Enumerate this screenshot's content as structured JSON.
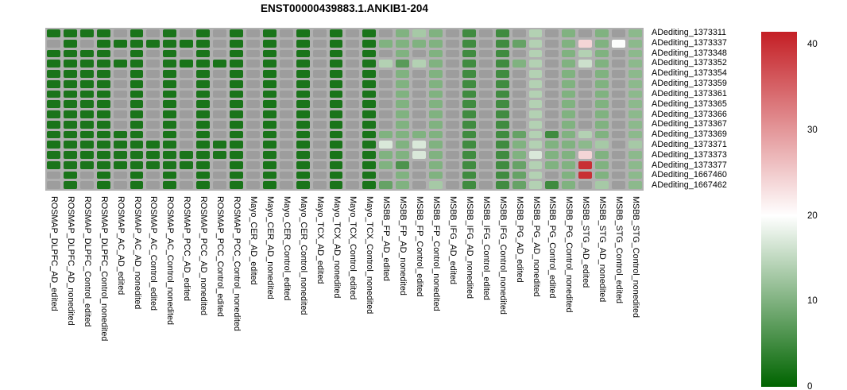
{
  "chart_data": {
    "type": "heatmap",
    "title": "ENST00000439883.1.ANKIB1-204",
    "legend_position": "right",
    "rows": [
      "ADediting_1373311",
      "ADediting_1373337",
      "ADediting_1373348",
      "ADediting_1373352",
      "ADediting_1373354",
      "ADediting_1373359",
      "ADediting_1373361",
      "ADediting_1373365",
      "ADediting_1373366",
      "ADediting_1373367",
      "ADediting_1373369",
      "ADediting_1373371",
      "ADediting_1373373",
      "ADediting_1373377",
      "ADediting_1667460",
      "ADediting_1667462"
    ],
    "columns": [
      "ROSMAP_DLPFC_AD_edited",
      "ROSMAP_DLPFC_AD_nonedited",
      "ROSMAP_DLPFC_Control_edited",
      "ROSMAP_DLPFC_Control_nonedited",
      "ROSMAP_AC_AD_edited",
      "ROSMAP_AC_AD_nonedited",
      "ROSMAP_AC_Control_edited",
      "ROSMAP_AC_Control_nonedited",
      "ROSMAP_PCC_AD_edited",
      "ROSMAP_PCC_AD_nonedited",
      "ROSMAP_PCC_Control_edited",
      "ROSMAP_PCC_Control_nonedited",
      "Mayo_CER_AD_edited",
      "Mayo_CER_AD_nonedited",
      "Mayo_CER_Control_edited",
      "Mayo_CER_Control_nonedited",
      "Mayo_TCX_AD_edited",
      "Mayo_TCX_AD_nonedited",
      "Mayo_TCX_Control_edited",
      "Mayo_TCX_Control_nonedited",
      "MSBB_FP_AD_edited",
      "MSBB_FP_AD_nonedited",
      "MSBB_FP_Control_edited",
      "MSBB_FP_Control_nonedited",
      "MSBB_IFG_AD_edited",
      "MSBB_IFG_AD_nonedited",
      "MSBB_IFG_Control_edited",
      "MSBB_IFG_Control_nonedited",
      "MSBB_PG_AD_edited",
      "MSBB_PG_AD_nonedited",
      "MSBB_PG_Control_edited",
      "MSBB_PG_Control_nonedited",
      "MSBB_STG_AD_edited",
      "MSBB_STG_AD_nonedited",
      "MSBB_STG_Control_edited",
      "MSBB_STG_Control_nonedited"
    ],
    "values": [
      [
        2,
        2,
        2,
        2,
        null,
        2,
        null,
        2,
        null,
        2,
        null,
        2,
        null,
        2,
        null,
        2,
        null,
        2,
        null,
        2,
        null,
        10,
        13,
        10,
        null,
        5,
        null,
        5,
        null,
        14,
        null,
        10,
        null,
        10,
        null,
        11
      ],
      [
        null,
        2,
        null,
        2,
        2,
        2,
        2,
        2,
        2,
        2,
        null,
        2,
        null,
        2,
        null,
        2,
        null,
        2,
        null,
        2,
        10,
        10,
        10,
        10,
        null,
        5,
        null,
        5,
        8,
        14,
        null,
        10,
        24,
        10,
        19.8,
        11
      ],
      [
        2,
        2,
        2,
        2,
        null,
        2,
        null,
        2,
        null,
        2,
        null,
        2,
        null,
        2,
        null,
        2,
        null,
        2,
        null,
        2,
        null,
        10,
        null,
        10,
        null,
        5,
        null,
        5,
        null,
        14,
        null,
        10,
        14,
        10,
        null,
        11
      ],
      [
        2,
        2,
        2,
        2,
        2,
        2,
        null,
        2,
        2,
        2,
        2,
        2,
        null,
        2,
        null,
        2,
        null,
        2,
        null,
        2,
        14,
        7,
        14,
        10,
        null,
        5,
        null,
        5,
        10,
        14,
        null,
        10,
        16,
        10,
        null,
        11
      ],
      [
        2,
        2,
        2,
        2,
        null,
        2,
        null,
        2,
        null,
        2,
        null,
        2,
        null,
        2,
        null,
        2,
        null,
        2,
        null,
        2,
        null,
        10,
        null,
        10,
        null,
        5,
        null,
        5,
        null,
        14,
        null,
        10,
        null,
        10,
        null,
        11
      ],
      [
        2,
        2,
        2,
        2,
        null,
        2,
        null,
        2,
        null,
        2,
        null,
        2,
        null,
        2,
        null,
        2,
        null,
        2,
        null,
        2,
        null,
        10,
        null,
        10,
        null,
        5,
        null,
        5,
        null,
        14,
        null,
        10,
        null,
        10,
        null,
        11
      ],
      [
        2,
        2,
        2,
        2,
        null,
        2,
        null,
        2,
        null,
        2,
        null,
        2,
        null,
        2,
        null,
        2,
        null,
        2,
        null,
        2,
        null,
        10,
        null,
        10,
        null,
        5,
        null,
        5,
        null,
        14,
        null,
        10,
        null,
        10,
        null,
        11
      ],
      [
        2,
        2,
        2,
        2,
        null,
        2,
        null,
        2,
        null,
        2,
        null,
        2,
        null,
        2,
        null,
        2,
        null,
        2,
        null,
        2,
        null,
        10,
        null,
        10,
        null,
        5,
        null,
        5,
        null,
        14,
        null,
        10,
        null,
        10,
        null,
        11
      ],
      [
        2,
        2,
        2,
        2,
        null,
        2,
        null,
        2,
        null,
        2,
        null,
        2,
        null,
        2,
        null,
        2,
        null,
        2,
        null,
        2,
        null,
        10,
        null,
        10,
        null,
        5,
        null,
        5,
        null,
        14,
        null,
        10,
        null,
        10,
        null,
        11
      ],
      [
        2,
        2,
        2,
        2,
        null,
        2,
        null,
        2,
        null,
        2,
        null,
        2,
        null,
        2,
        null,
        2,
        null,
        2,
        null,
        2,
        null,
        10,
        null,
        10,
        null,
        5,
        null,
        5,
        null,
        14,
        null,
        10,
        null,
        10,
        null,
        11
      ],
      [
        2,
        2,
        2,
        2,
        2,
        2,
        null,
        2,
        null,
        2,
        null,
        2,
        null,
        2,
        null,
        2,
        null,
        2,
        null,
        2,
        10,
        10,
        10,
        10,
        null,
        5,
        null,
        5,
        8,
        14,
        5,
        10,
        14,
        10,
        null,
        11
      ],
      [
        2,
        2,
        2,
        2,
        2,
        2,
        2,
        2,
        null,
        2,
        2,
        2,
        null,
        2,
        null,
        2,
        null,
        2,
        null,
        2,
        17,
        10,
        17,
        10,
        null,
        5,
        null,
        5,
        10,
        14,
        10,
        10,
        11,
        13,
        null,
        13
      ],
      [
        2,
        2,
        2,
        2,
        2,
        2,
        2,
        2,
        2,
        2,
        2,
        2,
        null,
        2,
        null,
        2,
        null,
        2,
        null,
        2,
        10,
        10,
        17,
        10,
        null,
        5,
        null,
        5,
        10,
        17,
        10,
        10,
        24,
        10,
        null,
        11
      ],
      [
        2,
        2,
        2,
        2,
        2,
        2,
        2,
        2,
        2,
        2,
        null,
        2,
        null,
        2,
        null,
        2,
        null,
        2,
        null,
        2,
        10,
        6,
        null,
        10,
        null,
        5,
        null,
        5,
        8,
        14,
        10,
        10,
        40,
        10,
        null,
        11
      ],
      [
        null,
        2,
        null,
        2,
        null,
        2,
        null,
        2,
        null,
        2,
        null,
        2,
        null,
        2,
        null,
        2,
        null,
        2,
        null,
        2,
        null,
        10,
        null,
        10,
        null,
        5,
        null,
        5,
        8,
        14,
        null,
        10,
        40,
        10,
        null,
        11
      ],
      [
        null,
        2,
        null,
        2,
        null,
        2,
        null,
        2,
        null,
        2,
        null,
        2,
        null,
        2,
        null,
        2,
        null,
        2,
        null,
        2,
        8,
        10,
        null,
        13,
        null,
        5,
        null,
        5,
        8,
        14,
        5,
        10,
        null,
        13,
        null,
        11
      ]
    ],
    "colorscale": {
      "domain": [
        0,
        20,
        41.5
      ],
      "colors": [
        "#006400",
        "#ffffff",
        "#c41f25"
      ],
      "na_color": "#9d9d9d",
      "grid_background": "#b0b0b0"
    },
    "colorbar": {
      "ticks": [
        0,
        10,
        20,
        30,
        40
      ],
      "min": 0,
      "max": 41.5
    }
  }
}
